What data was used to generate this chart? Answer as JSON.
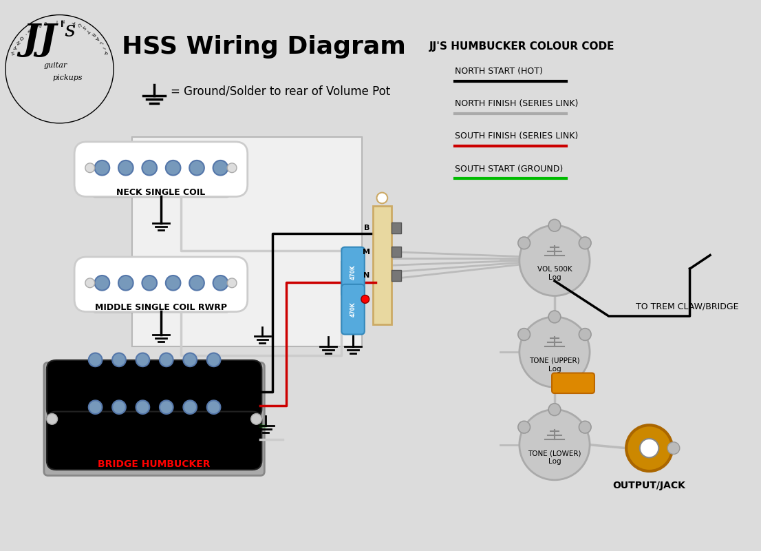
{
  "bg_color": "#dcdcdc",
  "title": "HSS Wiring Diagram",
  "subtitle": "= Ground/Solder to rear of Volume Pot",
  "legend_title": "JJ'S HUMBUCKER COLOUR CODE",
  "legend_items": [
    {
      "label": "NORTH START (HOT)",
      "color": "#000000"
    },
    {
      "label": "NORTH FINISH (SERIES LINK)",
      "color": "#aaaaaa"
    },
    {
      "label": "SOUTH FINISH (SERIES LINK)",
      "color": "#cc0000"
    },
    {
      "label": "SOUTH START (GROUND)",
      "color": "#00bb00"
    }
  ],
  "neck_label": "NECK SINGLE COIL",
  "middle_label": "MIDDLE SINGLE COIL RWRP",
  "bridge_label": "BRIDGE HUMBUCKER",
  "vol_label": "VOL 500K\nLog",
  "tone1_label": "TONE (UPPER)\nLog",
  "tone2_label": "TONE (LOWER)\nLog",
  "jack_label": "OUTPUT/JACK",
  "trem_label": "TO TREM CLAW/BRIDGE"
}
